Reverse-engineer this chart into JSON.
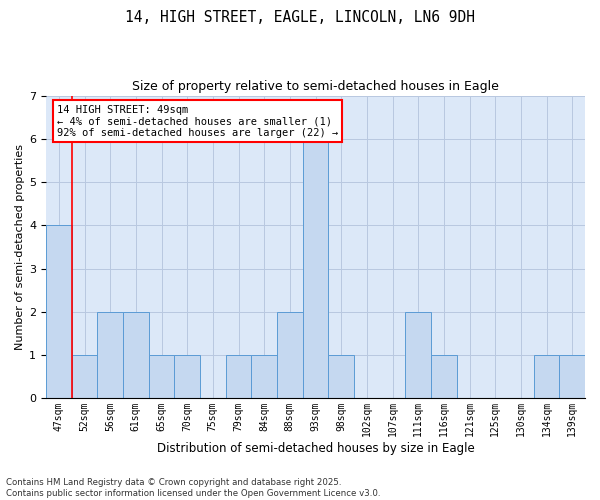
{
  "title_line1": "14, HIGH STREET, EAGLE, LINCOLN, LN6 9DH",
  "title_line2": "Size of property relative to semi-detached houses in Eagle",
  "xlabel": "Distribution of semi-detached houses by size in Eagle",
  "ylabel": "Number of semi-detached properties",
  "categories": [
    "47sqm",
    "52sqm",
    "56sqm",
    "61sqm",
    "65sqm",
    "70sqm",
    "75sqm",
    "79sqm",
    "84sqm",
    "88sqm",
    "93sqm",
    "98sqm",
    "102sqm",
    "107sqm",
    "111sqm",
    "116sqm",
    "121sqm",
    "125sqm",
    "130sqm",
    "134sqm",
    "139sqm"
  ],
  "values": [
    4,
    1,
    2,
    2,
    1,
    1,
    0,
    1,
    1,
    2,
    6,
    1,
    0,
    0,
    2,
    1,
    0,
    0,
    0,
    1,
    1
  ],
  "bar_color": "#c5d8f0",
  "bar_edge_color": "#5b9bd5",
  "marker_label": "14 HIGH STREET: 49sqm",
  "annotation_line1": "← 4% of semi-detached houses are smaller (1)",
  "annotation_line2": "92% of semi-detached houses are larger (22) →",
  "marker_color": "red",
  "ylim": [
    0,
    7
  ],
  "yticks": [
    0,
    1,
    2,
    3,
    4,
    5,
    6,
    7
  ],
  "grid_color": "#b8c8e0",
  "bg_color": "#dce8f8",
  "footer_line1": "Contains HM Land Registry data © Crown copyright and database right 2025.",
  "footer_line2": "Contains public sector information licensed under the Open Government Licence v3.0."
}
